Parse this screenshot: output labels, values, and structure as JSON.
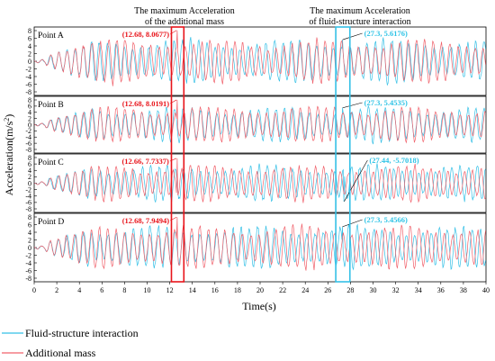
{
  "chart_data": {
    "type": "line",
    "header_left": [
      "The maximum Acceleration",
      "of the additional mass"
    ],
    "header_right": [
      "The maximum Acceleration",
      "of fluid-structure interaction"
    ],
    "xlabel": "Time(s)",
    "ylabel": "Acceleration(m/s",
    "ylabel_sup": "2",
    "ylabel_close": ")",
    "xlim": [
      0,
      40
    ],
    "x_ticks": [
      0,
      2,
      4,
      6,
      8,
      10,
      12,
      14,
      16,
      18,
      20,
      22,
      24,
      26,
      28,
      30,
      32,
      34,
      36,
      38,
      40
    ],
    "ylim": [
      -8,
      8
    ],
    "y_ticks": [
      8,
      6,
      4,
      2,
      0,
      -2,
      -4,
      -6,
      -8
    ],
    "series": [
      {
        "name": "Fluid-structure interaction",
        "color": "#35c0e6"
      },
      {
        "name": "Additional mass",
        "color": "#f0606a"
      }
    ],
    "panels": [
      {
        "label": "Point A",
        "red_peak": {
          "x": 12.68,
          "y": 8.0677,
          "text": "(12.68, 8.0677)"
        },
        "cyan_peak": {
          "x": 27.3,
          "y": 5.6176,
          "text": "(27.3, 5.6176)"
        }
      },
      {
        "label": "Point B",
        "red_peak": {
          "x": 12.68,
          "y": 8.0191,
          "text": "(12.68, 8.0191)"
        },
        "cyan_peak": {
          "x": 27.3,
          "y": 5.4535,
          "text": "(27.3, 5.4535)"
        }
      },
      {
        "label": "Point C",
        "red_peak": {
          "x": 12.66,
          "y": 7.7337,
          "text": "(12.66, 7.7337)"
        },
        "cyan_peak": {
          "x": 27.44,
          "y": -5.7018,
          "text": "(27.44, -5.7018)"
        }
      },
      {
        "label": "Point D",
        "red_peak": {
          "x": 12.68,
          "y": 7.9494,
          "text": "(12.68, 7.9494)"
        },
        "cyan_peak": {
          "x": 27.3,
          "y": 5.4566,
          "text": "(27.3, 5.4566)"
        }
      }
    ]
  },
  "legend": {
    "items": [
      {
        "label": "Fluid-structure interaction",
        "color": "#35c0e6"
      },
      {
        "label": "Additional mass",
        "color": "#f0606a"
      }
    ]
  }
}
